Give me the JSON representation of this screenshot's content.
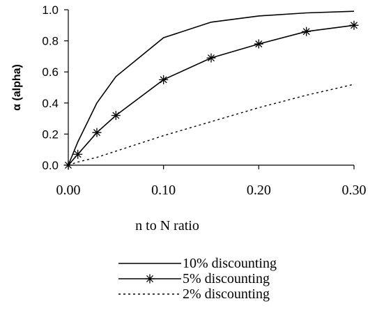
{
  "chart_data": {
    "type": "line",
    "title": "",
    "xlabel": "n to N ratio",
    "ylabel": "α (alpha)",
    "xlim": [
      0,
      0.3
    ],
    "ylim": [
      0,
      1.0
    ],
    "x_ticks": [
      "0.00",
      "0.10",
      "0.20",
      "0.30"
    ],
    "y_ticks": [
      "0.0",
      "0.2",
      "0.4",
      "0.6",
      "0.8",
      "1.0"
    ],
    "grid": false,
    "legend_position": "bottom",
    "series": [
      {
        "name": "10% discounting",
        "style": "solid",
        "marker": "none",
        "color": "#000000",
        "x": [
          0.0,
          0.01,
          0.03,
          0.05,
          0.1,
          0.15,
          0.2,
          0.25,
          0.3
        ],
        "y": [
          0.0,
          0.15,
          0.4,
          0.57,
          0.82,
          0.92,
          0.96,
          0.98,
          0.99
        ]
      },
      {
        "name": "5% discounting",
        "style": "solid",
        "marker": "asterisk",
        "color": "#000000",
        "x": [
          0.0,
          0.01,
          0.03,
          0.05,
          0.1,
          0.15,
          0.2,
          0.25,
          0.3
        ],
        "y": [
          0.0,
          0.07,
          0.21,
          0.32,
          0.55,
          0.69,
          0.78,
          0.86,
          0.9
        ]
      },
      {
        "name": "2% discounting",
        "style": "dotted",
        "marker": "none",
        "color": "#000000",
        "x": [
          0.0,
          0.01,
          0.03,
          0.05,
          0.1,
          0.15,
          0.2,
          0.25,
          0.3
        ],
        "y": [
          0.0,
          0.02,
          0.05,
          0.09,
          0.19,
          0.28,
          0.37,
          0.45,
          0.52
        ]
      }
    ]
  }
}
